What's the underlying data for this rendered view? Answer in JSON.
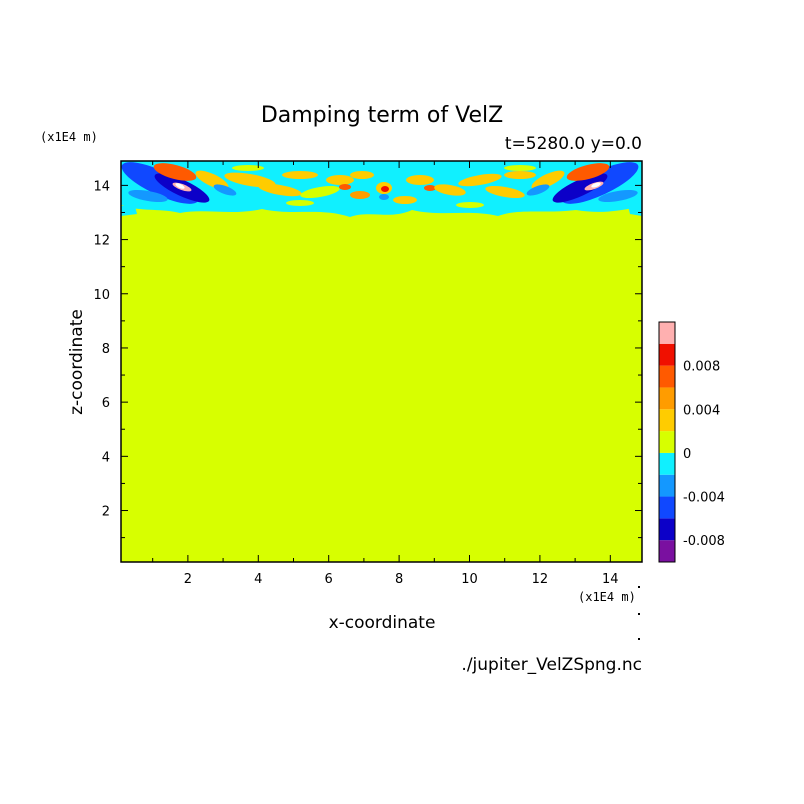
{
  "chart_data": {
    "type": "heatmap",
    "title": "Damping term of VelZ",
    "subtitle": "t=5280.0 y=0.0",
    "xlabel": "x-coordinate",
    "ylabel": "z-coordinate",
    "x_unit": "(x1E4 m)",
    "y_unit": "(x1E4 m)",
    "xlim": [
      0.1,
      14.9
    ],
    "ylim": [
      0.1,
      14.9
    ],
    "x_ticks": [
      2,
      4,
      6,
      8,
      10,
      12,
      14
    ],
    "y_ticks": [
      2,
      4,
      6,
      8,
      10,
      12,
      14
    ],
    "background_level": 0,
    "background_color": "#d7ff00",
    "colorbar": {
      "levels": [
        {
          "lo": -0.01,
          "hi": -0.008,
          "color": "#7a10a0"
        },
        {
          "lo": -0.008,
          "hi": -0.006,
          "color": "#0c00c8"
        },
        {
          "lo": -0.006,
          "hi": -0.004,
          "color": "#1048ff"
        },
        {
          "lo": -0.004,
          "hi": -0.002,
          "color": "#1498ff"
        },
        {
          "lo": -0.002,
          "hi": 0.0,
          "color": "#10f0ff"
        },
        {
          "lo": 0.0,
          "hi": 0.002,
          "color": "#d7ff00"
        },
        {
          "lo": 0.002,
          "hi": 0.004,
          "color": "#ffcc00"
        },
        {
          "lo": 0.004,
          "hi": 0.006,
          "color": "#ff9c00"
        },
        {
          "lo": 0.006,
          "hi": 0.008,
          "color": "#ff5a00"
        },
        {
          "lo": 0.008,
          "hi": 0.01,
          "color": "#f01000"
        },
        {
          "lo": 0.01,
          "hi": 0.012,
          "color": "#ffb0b0"
        }
      ],
      "tick_labels": [
        "0.008",
        "0.004",
        "0",
        "-0.004",
        "-0.008"
      ],
      "tick_values": [
        0.008,
        0.004,
        0,
        -0.004,
        -0.008
      ]
    },
    "source_file": "./jupiter_VelZSpng.nc"
  }
}
